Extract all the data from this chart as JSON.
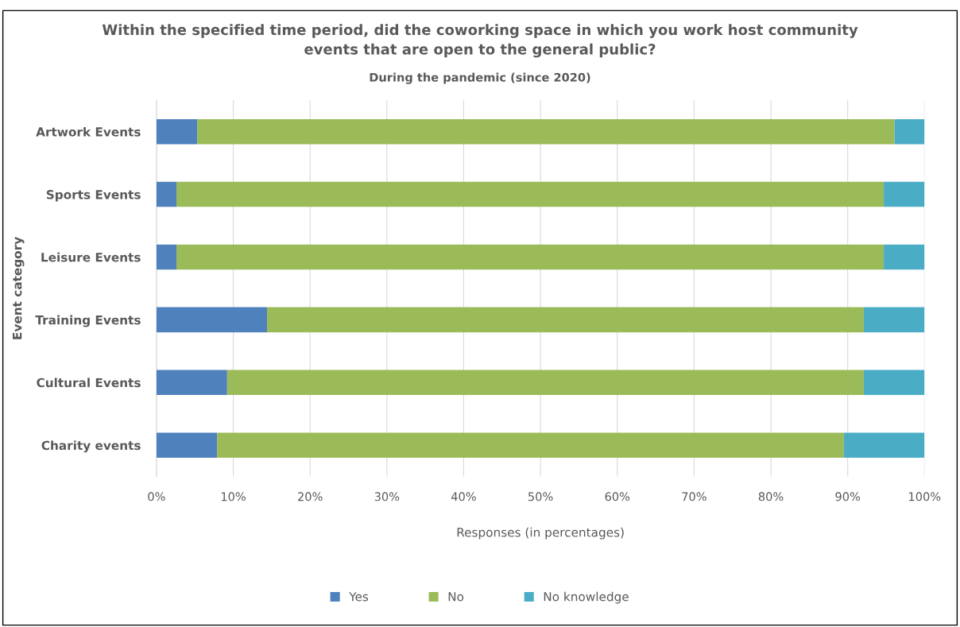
{
  "chart_data": {
    "type": "bar",
    "orientation": "horizontal",
    "stacked": true,
    "title": "Within the specified time period, did the coworking space in which you work host community\nevents that are open to the general public?",
    "subtitle": "During the pandemic (since 2020)",
    "xlabel": "Responses (in percentages)",
    "ylabel": "Event category",
    "categories": [
      "Artwork Events",
      "Sports Events",
      "Leisure Events",
      "Training Events",
      "Cultural Events",
      "Charity events"
    ],
    "series": [
      {
        "name": "Yes",
        "color": "#4f81bd",
        "values": [
          5.3,
          2.6,
          2.6,
          14.4,
          9.2,
          7.9
        ]
      },
      {
        "name": "No",
        "color": "#9bbb59",
        "values": [
          90.8,
          92.1,
          92.1,
          77.7,
          82.9,
          81.6
        ]
      },
      {
        "name": "No knowledge",
        "color": "#4bacc6",
        "values": [
          3.9,
          5.3,
          5.3,
          7.9,
          7.9,
          10.5
        ]
      }
    ],
    "xlim": [
      0,
      100
    ],
    "xticks": [
      {
        "value": 0,
        "label": "0%"
      },
      {
        "value": 10,
        "label": "10%"
      },
      {
        "value": 20,
        "label": "20%"
      },
      {
        "value": 30,
        "label": "30%"
      },
      {
        "value": 40,
        "label": "40%"
      },
      {
        "value": 50,
        "label": "50%"
      },
      {
        "value": 60,
        "label": "60%"
      },
      {
        "value": 70,
        "label": "70%"
      },
      {
        "value": 80,
        "label": "80%"
      },
      {
        "value": 90,
        "label": "90%"
      },
      {
        "value": 100,
        "label": "100%"
      }
    ],
    "grid": "x",
    "legend": "bottom"
  }
}
